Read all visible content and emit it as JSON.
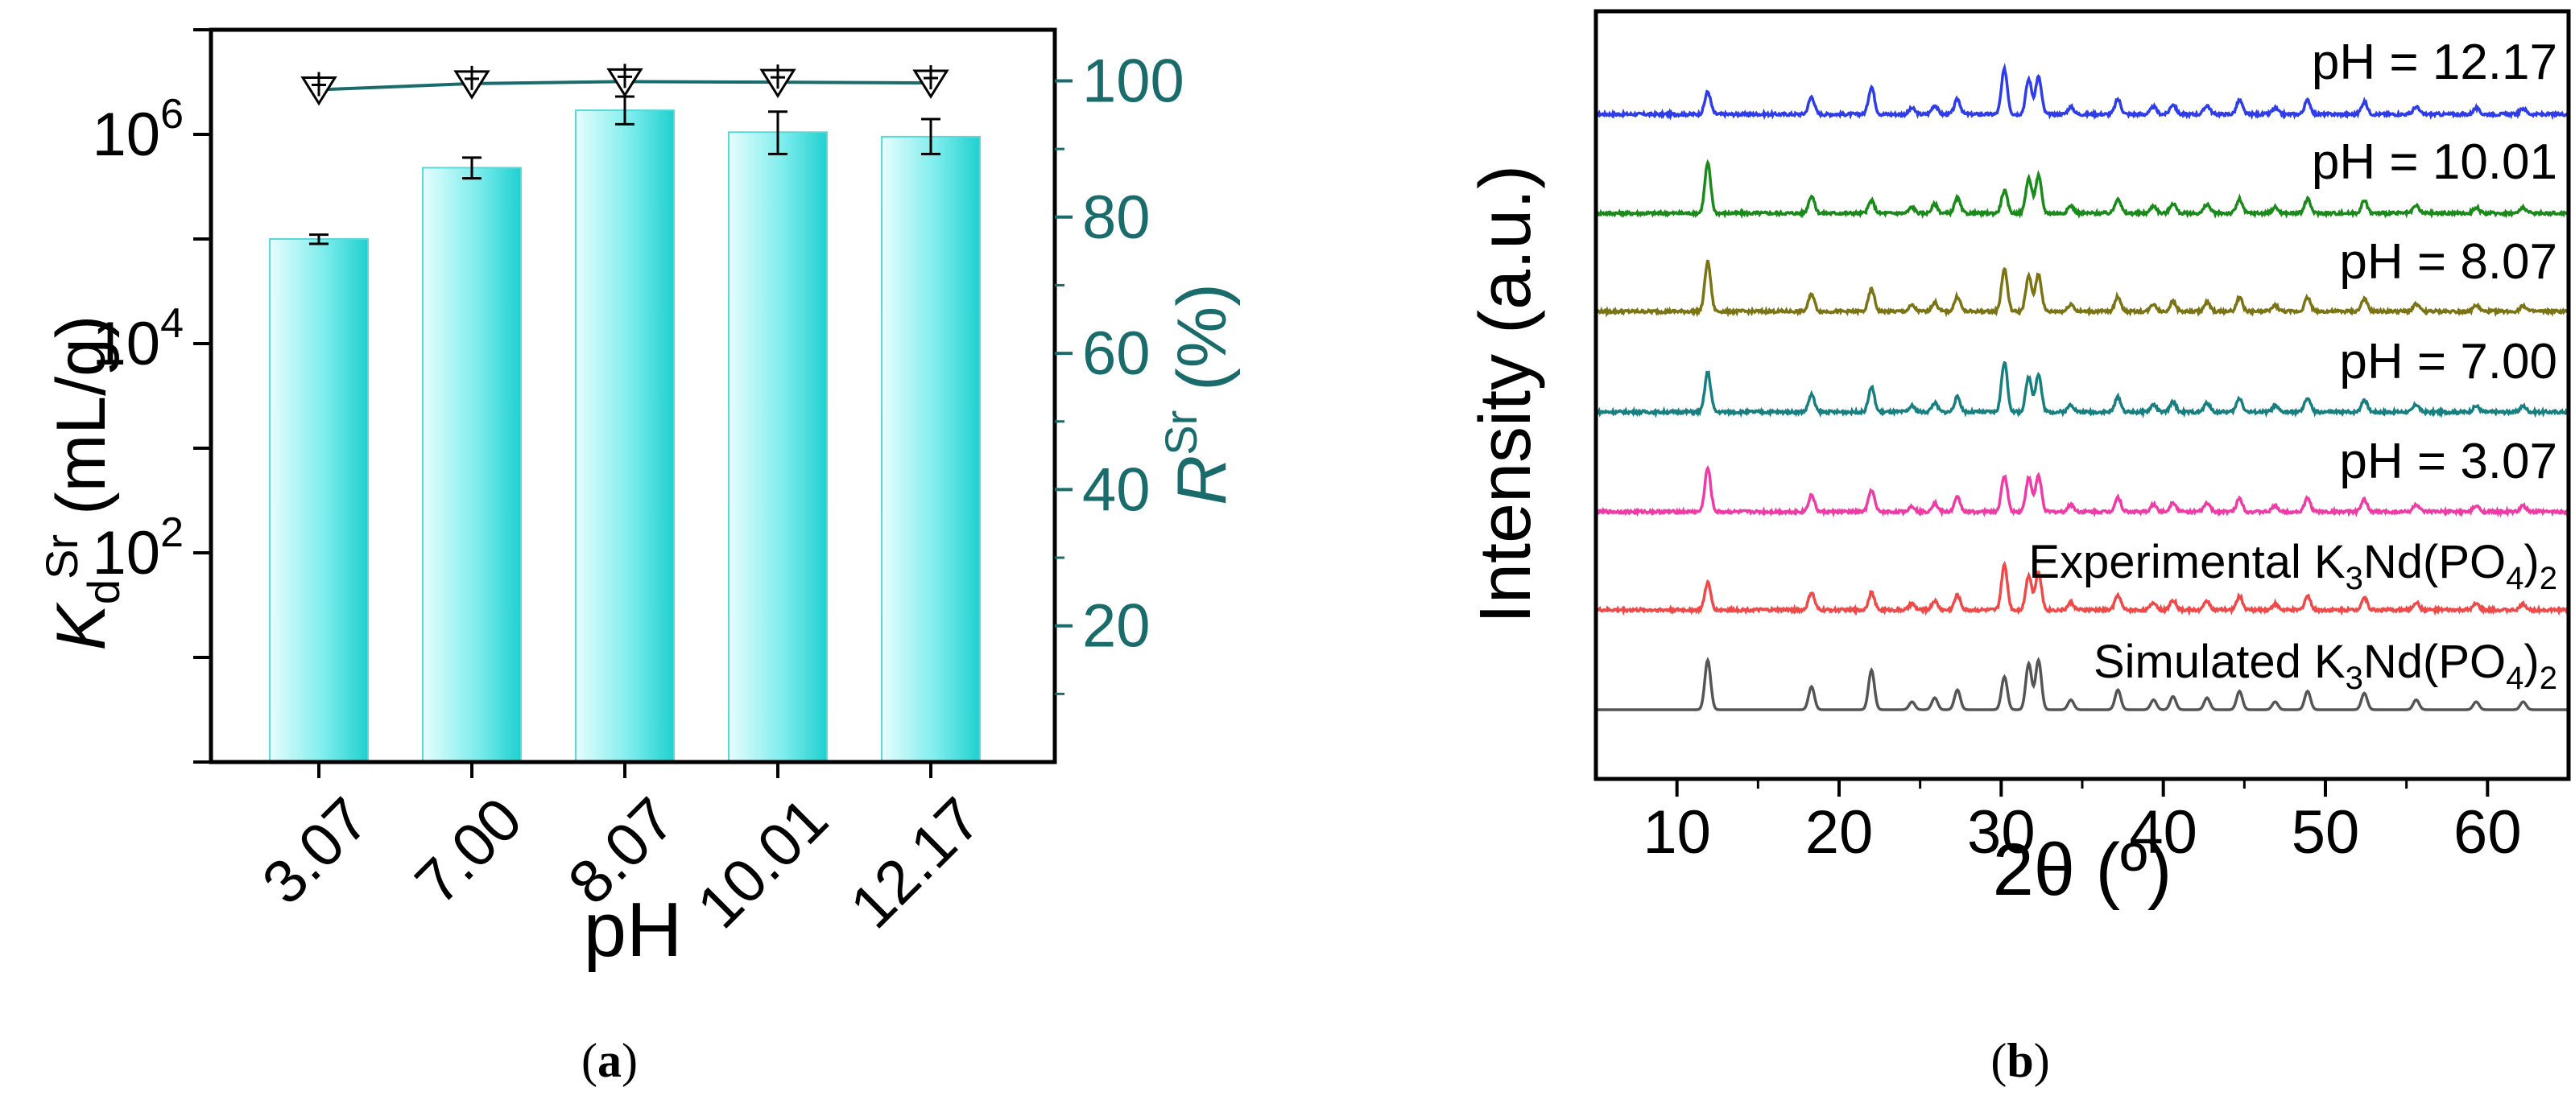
{
  "chart_data": [
    {
      "type": "bar",
      "panel_label": "a",
      "categories": [
        "3.07",
        "7.00",
        "8.07",
        "10.01",
        "12.17"
      ],
      "xlabel": "pH",
      "ylabel_left": {
        "main": "K",
        "sub": "d",
        "sup": "Sr",
        "unit": " (mL/g)"
      },
      "ylabel_right": {
        "main": "R",
        "sup": "Sr",
        "unit": " (%)"
      },
      "yscale_left": "log",
      "ylim_left": [
        1,
        10000000
      ],
      "left_ticks": [
        {
          "v": 100,
          "base": "10",
          "exp": "2"
        },
        {
          "v": 10000,
          "base": "10",
          "exp": "4"
        },
        {
          "v": 1000000,
          "base": "10",
          "exp": "6"
        }
      ],
      "ylim_right": [
        0,
        107.5
      ],
      "right_ticks": [
        "20",
        "40",
        "60",
        "80",
        "100"
      ],
      "series": [
        {
          "name": "Kd Sr",
          "axis": "left",
          "kind": "bar",
          "values": [
            100000,
            480000,
            1700000,
            1050000,
            950000
          ],
          "err_low": [
            90000,
            380000,
            1250000,
            650000,
            650000
          ],
          "err_high": [
            110000,
            600000,
            2300000,
            1650000,
            1400000
          ],
          "color": "#3fe0e0"
        },
        {
          "name": "R Sr",
          "axis": "right",
          "kind": "line-marker",
          "values": [
            98.7,
            99.6,
            99.9,
            99.8,
            99.7
          ],
          "color": "#1a6b6b"
        }
      ]
    },
    {
      "type": "line",
      "panel_label": "b",
      "xlabel": "2θ (º)",
      "ylabel": "Intensity (a.u.)",
      "xlim": [
        5,
        65
      ],
      "x_ticks": [
        "10",
        "20",
        "30",
        "40",
        "50",
        "60"
      ],
      "series": [
        {
          "name": "pH = 12.17",
          "color": "#2e3de8",
          "label_parts": [
            "pH = 12.17"
          ]
        },
        {
          "name": "pH = 10.01",
          "color": "#1a8a1a",
          "label_parts": [
            "pH = 10.01"
          ]
        },
        {
          "name": "pH = 8.07",
          "color": "#7a7414",
          "label_parts": [
            "pH = 8.07"
          ]
        },
        {
          "name": "pH = 7.00",
          "color": "#177f80",
          "label_parts": [
            "pH = 7.00"
          ]
        },
        {
          "name": "pH = 3.07",
          "color": "#ee3ba6",
          "label_parts": [
            "pH = 3.07"
          ]
        },
        {
          "name": "Experimental K3Nd(PO4)2",
          "color": "#ee4a4a",
          "label_parts": [
            "Experimental K",
            "3",
            "Nd(PO",
            "4",
            ")",
            "2"
          ]
        },
        {
          "name": "Simulated K3Nd(PO4)2",
          "color": "#555555",
          "label_parts": [
            "Simulated K",
            "3",
            "Nd(PO",
            "4",
            ")",
            "2"
          ]
        }
      ],
      "peaks": [
        {
          "x": 11.9,
          "h": 1.0
        },
        {
          "x": 18.3,
          "h": 0.35
        },
        {
          "x": 22.0,
          "h": 0.85
        },
        {
          "x": 24.5,
          "h": 0.12
        },
        {
          "x": 25.9,
          "h": 0.18
        },
        {
          "x": 27.3,
          "h": 0.3
        },
        {
          "x": 30.2,
          "h": 1.0
        },
        {
          "x": 31.7,
          "h": 0.7
        },
        {
          "x": 32.3,
          "h": 0.75
        },
        {
          "x": 34.3,
          "h": 0.15
        },
        {
          "x": 37.2,
          "h": 0.3
        },
        {
          "x": 39.4,
          "h": 0.15
        },
        {
          "x": 40.6,
          "h": 0.2
        },
        {
          "x": 42.7,
          "h": 0.18
        },
        {
          "x": 44.7,
          "h": 0.28
        },
        {
          "x": 46.9,
          "h": 0.12
        },
        {
          "x": 48.9,
          "h": 0.28
        },
        {
          "x": 52.4,
          "h": 0.25
        },
        {
          "x": 55.6,
          "h": 0.15
        },
        {
          "x": 59.3,
          "h": 0.12
        },
        {
          "x": 62.2,
          "h": 0.12
        }
      ]
    }
  ],
  "captions": {
    "a": "a",
    "b": "b"
  }
}
